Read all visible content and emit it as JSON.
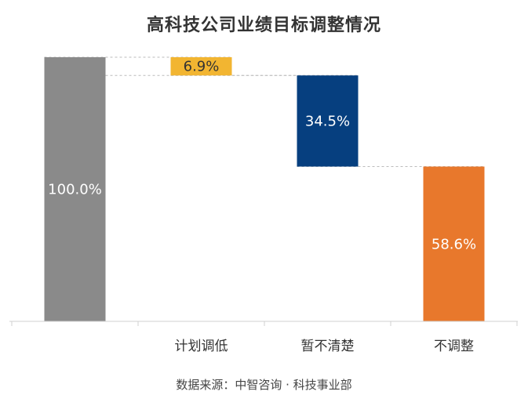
{
  "title": "高科技公司业绩目标调整情况",
  "source": "数据来源：中智咨询 · 科技事业部",
  "chart_data": {
    "type": "bar",
    "subtype": "waterfall",
    "title": "高科技公司业绩目标调整情况",
    "categories": [
      "",
      "计划调低",
      "暂不清楚",
      "不调整"
    ],
    "values": [
      100.0,
      6.9,
      34.5,
      58.6
    ],
    "data_labels": [
      "100.0%",
      "6.9%",
      "34.5%",
      "58.6%"
    ],
    "colors": [
      "#8a8a8a",
      "#f2b531",
      "#063f7f",
      "#e8782c"
    ],
    "ylim": [
      0,
      100
    ],
    "grid": false,
    "connector_lines": "dashed"
  }
}
